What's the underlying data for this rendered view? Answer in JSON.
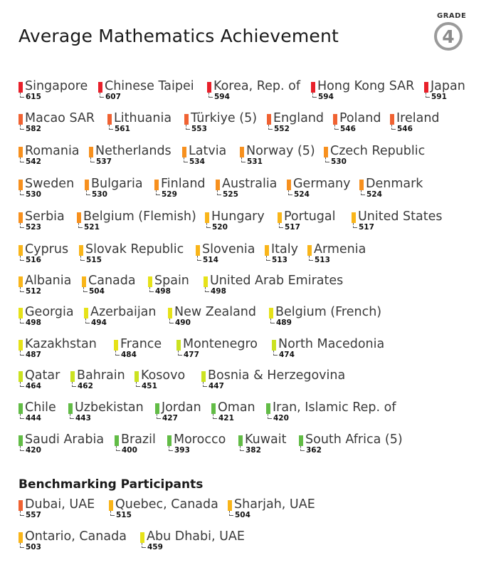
{
  "header": {
    "title": "Average Mathematics Achievement",
    "grade_label": "GRADE",
    "grade_number": "4"
  },
  "benchmark_header": "Benchmarking Participants",
  "colors": {
    "red": "#e8202a",
    "red_orange": "#f06232",
    "orange": "#f7901e",
    "amber": "#f9b51a",
    "yellow": "#e6e219",
    "yellow_green": "#cbe221",
    "green": "#62bc46"
  },
  "chart_data": {
    "type": "ranked-list",
    "title": "Average Mathematics Achievement",
    "countries": [
      {
        "name": "Singapore",
        "score": 615,
        "color": "red"
      },
      {
        "name": "Chinese Taipei",
        "score": 607,
        "color": "red"
      },
      {
        "name": "Korea, Rep. of",
        "score": 594,
        "color": "red"
      },
      {
        "name": "Hong Kong SAR",
        "score": 594,
        "color": "red"
      },
      {
        "name": "Japan",
        "score": 591,
        "color": "red"
      },
      {
        "name": "Macao SAR",
        "score": 582,
        "color": "red_orange"
      },
      {
        "name": "Lithuania",
        "score": 561,
        "color": "red_orange"
      },
      {
        "name": "Türkiye (5)",
        "score": 553,
        "color": "red_orange"
      },
      {
        "name": "England",
        "score": 552,
        "color": "red_orange"
      },
      {
        "name": "Poland",
        "score": 546,
        "color": "red_orange"
      },
      {
        "name": "Ireland",
        "score": 546,
        "color": "red_orange"
      },
      {
        "name": "Romania",
        "score": 542,
        "color": "orange"
      },
      {
        "name": "Netherlands",
        "score": 537,
        "color": "orange"
      },
      {
        "name": "Latvia",
        "score": 534,
        "color": "orange"
      },
      {
        "name": "Norway (5)",
        "score": 531,
        "color": "orange"
      },
      {
        "name": "Czech Republic",
        "score": 530,
        "color": "orange"
      },
      {
        "name": "Sweden",
        "score": 530,
        "color": "orange"
      },
      {
        "name": "Bulgaria",
        "score": 530,
        "color": "orange"
      },
      {
        "name": "Finland",
        "score": 529,
        "color": "orange"
      },
      {
        "name": "Australia",
        "score": 525,
        "color": "orange"
      },
      {
        "name": "Germany",
        "score": 524,
        "color": "orange"
      },
      {
        "name": "Denmark",
        "score": 524,
        "color": "orange"
      },
      {
        "name": "Serbia",
        "score": 523,
        "color": "orange"
      },
      {
        "name": "Belgium (Flemish)",
        "score": 521,
        "color": "orange"
      },
      {
        "name": "Hungary",
        "score": 520,
        "color": "amber"
      },
      {
        "name": "Portugal",
        "score": 517,
        "color": "amber"
      },
      {
        "name": "United States",
        "score": 517,
        "color": "amber"
      },
      {
        "name": "Cyprus",
        "score": 516,
        "color": "amber"
      },
      {
        "name": "Slovak Republic",
        "score": 515,
        "color": "amber"
      },
      {
        "name": "Slovenia",
        "score": 514,
        "color": "amber"
      },
      {
        "name": "Italy",
        "score": 513,
        "color": "amber"
      },
      {
        "name": "Armenia",
        "score": 513,
        "color": "amber"
      },
      {
        "name": "Albania",
        "score": 512,
        "color": "amber"
      },
      {
        "name": "Canada",
        "score": 504,
        "color": "amber"
      },
      {
        "name": "Spain",
        "score": 498,
        "color": "yellow"
      },
      {
        "name": "United Arab Emirates",
        "score": 498,
        "color": "yellow"
      },
      {
        "name": "Georgia",
        "score": 498,
        "color": "yellow"
      },
      {
        "name": "Azerbaijan",
        "score": 494,
        "color": "yellow"
      },
      {
        "name": "New Zealand",
        "score": 490,
        "color": "yellow"
      },
      {
        "name": "Belgium (French)",
        "score": 489,
        "color": "yellow"
      },
      {
        "name": "Kazakhstan",
        "score": 487,
        "color": "yellow"
      },
      {
        "name": "France",
        "score": 484,
        "color": "yellow"
      },
      {
        "name": "Montenegro",
        "score": 477,
        "color": "yellow_green"
      },
      {
        "name": "North Macedonia",
        "score": 474,
        "color": "yellow_green"
      },
      {
        "name": "Qatar",
        "score": 464,
        "color": "yellow_green"
      },
      {
        "name": "Bahrain",
        "score": 462,
        "color": "yellow_green"
      },
      {
        "name": "Kosovo",
        "score": 451,
        "color": "yellow_green"
      },
      {
        "name": "Bosnia & Herzegovina",
        "score": 447,
        "color": "yellow_green"
      },
      {
        "name": "Chile",
        "score": 444,
        "color": "green"
      },
      {
        "name": "Uzbekistan",
        "score": 443,
        "color": "green"
      },
      {
        "name": "Jordan",
        "score": 427,
        "color": "green"
      },
      {
        "name": "Oman",
        "score": 421,
        "color": "green"
      },
      {
        "name": "Iran, Islamic Rep. of",
        "score": 420,
        "color": "green"
      },
      {
        "name": "Saudi Arabia",
        "score": 420,
        "color": "green"
      },
      {
        "name": "Brazil",
        "score": 400,
        "color": "green"
      },
      {
        "name": "Morocco",
        "score": 393,
        "color": "green"
      },
      {
        "name": "Kuwait",
        "score": 382,
        "color": "green"
      },
      {
        "name": "South Africa (5)",
        "score": 362,
        "color": "green"
      }
    ],
    "benchmarking_participants": [
      {
        "name": "Dubai, UAE",
        "score": 557,
        "color": "red_orange"
      },
      {
        "name": "Quebec, Canada",
        "score": 515,
        "color": "amber"
      },
      {
        "name": "Sharjah, UAE",
        "score": 504,
        "color": "amber"
      },
      {
        "name": "Ontario, Canada",
        "score": 503,
        "color": "amber"
      },
      {
        "name": "Abu Dhabi, UAE",
        "score": 459,
        "color": "yellow"
      }
    ]
  }
}
